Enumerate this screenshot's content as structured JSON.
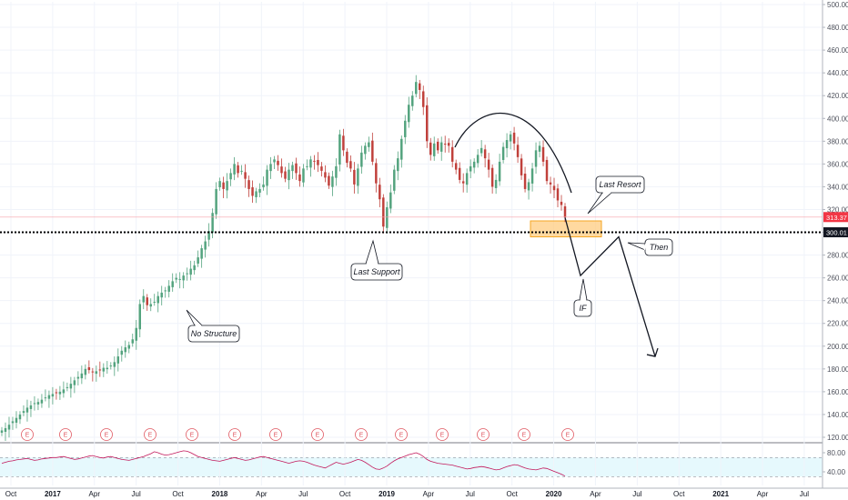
{
  "chart_data": [
    {
      "type": "candlestick",
      "title": "",
      "ylim": [
        112,
        502
      ],
      "y_ticks": [
        "500.00",
        "480.00",
        "460.00",
        "440.00",
        "420.00",
        "400.00",
        "380.00",
        "360.00",
        "340.00",
        "320.00",
        "300.00",
        "280.00",
        "260.00",
        "240.00",
        "220.00",
        "200.00",
        "180.00",
        "160.00",
        "140.00",
        "120.00"
      ],
      "x_ticks": [
        {
          "label": "Oct",
          "year": false,
          "t": 0
        },
        {
          "label": "2017",
          "year": true,
          "t": 13
        },
        {
          "label": "Apr",
          "year": false,
          "t": 26
        },
        {
          "label": "Jul",
          "year": false,
          "t": 39
        },
        {
          "label": "Oct",
          "year": false,
          "t": 52
        },
        {
          "label": "2018",
          "year": true,
          "t": 65
        },
        {
          "label": "Apr",
          "year": false,
          "t": 78
        },
        {
          "label": "Jul",
          "year": false,
          "t": 91
        },
        {
          "label": "Oct",
          "year": false,
          "t": 104
        },
        {
          "label": "2019",
          "year": true,
          "t": 117
        },
        {
          "label": "Apr",
          "year": false,
          "t": 130
        },
        {
          "label": "Jul",
          "year": false,
          "t": 143
        },
        {
          "label": "Oct",
          "year": false,
          "t": 156
        },
        {
          "label": "2020",
          "year": true,
          "t": 169
        },
        {
          "label": "Apr",
          "year": false,
          "t": 182
        },
        {
          "label": "Jul",
          "year": false,
          "t": 195
        },
        {
          "label": "Oct",
          "year": false,
          "t": 208
        },
        {
          "label": "2021",
          "year": true,
          "t": 221
        },
        {
          "label": "Apr",
          "year": false,
          "t": 234
        },
        {
          "label": "Jul",
          "year": false,
          "t": 247
        }
      ],
      "close_series": [
        126,
        128,
        131,
        134,
        137,
        140,
        143,
        146,
        148,
        150,
        151,
        153,
        155,
        157,
        158,
        159,
        160,
        162,
        164,
        167,
        170,
        173,
        176,
        180,
        179,
        177,
        178,
        179,
        181,
        181,
        183,
        186,
        191,
        196,
        199,
        201,
        206,
        216,
        237,
        244,
        236,
        237,
        239,
        244,
        247,
        249,
        253,
        257,
        260,
        259,
        262,
        264,
        268,
        271,
        278,
        286,
        292,
        301,
        317,
        338,
        345,
        338,
        345,
        352,
        360,
        352,
        354,
        347,
        338,
        332,
        336,
        338,
        342,
        355,
        360,
        364,
        359,
        352,
        347,
        355,
        359,
        352,
        345,
        356,
        358,
        364,
        362,
        359,
        354,
        348,
        341,
        349,
        358,
        386,
        372,
        361,
        356,
        342,
        356,
        370,
        376,
        379,
        362,
        343,
        329,
        305,
        322,
        335,
        355,
        365,
        382,
        398,
        412,
        420,
        432,
        425,
        410,
        380,
        368,
        378,
        372,
        379,
        377,
        376,
        362,
        355,
        346,
        343,
        352,
        358,
        362,
        368,
        374,
        365,
        355,
        340,
        346,
        362,
        375,
        381,
        386,
        378,
        366,
        350,
        338,
        344,
        356,
        372,
        376,
        362,
        345,
        342,
        337,
        328,
        324,
        313
      ],
      "last_price": "313.37",
      "horizontal_levels": [
        {
          "price": 300.01,
          "label": "300.01"
        }
      ],
      "zone": {
        "from": 296,
        "to": 310
      },
      "earnings_markers": [
        "E",
        "E",
        "E",
        "E",
        "E",
        "E",
        "E",
        "E",
        "E",
        "E",
        "E",
        "E",
        "E",
        "E"
      ],
      "annotations": [
        {
          "text": "No Structure",
          "type": "callout"
        },
        {
          "text": "Last Support",
          "type": "callout"
        },
        {
          "text": "Last Resort",
          "type": "callout"
        },
        {
          "text": "Then",
          "type": "callout"
        },
        {
          "text": "IF",
          "type": "callout"
        }
      ],
      "projected_path_prices": [
        313,
        262,
        296,
        191
      ]
    },
    {
      "type": "line",
      "title": "",
      "ylim": [
        20,
        100
      ],
      "y_ticks": [
        "80.00",
        "40.00"
      ],
      "bands": [
        30,
        70
      ],
      "values": [
        58,
        60,
        62,
        63,
        65,
        66,
        67,
        68,
        66,
        64,
        65,
        67,
        68,
        69,
        70,
        70,
        71,
        72,
        70,
        68,
        66,
        67,
        69,
        71,
        73,
        74,
        72,
        70,
        69,
        71,
        72,
        70,
        68,
        66,
        65,
        64,
        66,
        68,
        70,
        72,
        75,
        78,
        82,
        80,
        77,
        75,
        76,
        78,
        80,
        82,
        84,
        83,
        80,
        76,
        72,
        70,
        68,
        66,
        64,
        63,
        62,
        64,
        66,
        68,
        70,
        68,
        66,
        64,
        65,
        67,
        69,
        71,
        72,
        70,
        68,
        66,
        64,
        62,
        60,
        58,
        60,
        62,
        63,
        62,
        60,
        57,
        54,
        52,
        50,
        48,
        52,
        56,
        60,
        58,
        56,
        58,
        60,
        63,
        66,
        64,
        60,
        55,
        50,
        46,
        45,
        48,
        52,
        58,
        63,
        67,
        70,
        73,
        76,
        78,
        80,
        77,
        72,
        66,
        62,
        60,
        58,
        57,
        56,
        55,
        54,
        52,
        50,
        48,
        46,
        47,
        49,
        50,
        51,
        50,
        48,
        46,
        44,
        45,
        48,
        51,
        53,
        55,
        54,
        51,
        48,
        46,
        45,
        44,
        46,
        48,
        47,
        44,
        41,
        38,
        35,
        31
      ]
    }
  ],
  "colors": {
    "up": "#53a37e",
    "down": "#c0403b",
    "accent_red": "#f23645",
    "zone_fill": "#ffcc80",
    "zone_stroke": "#f5a623",
    "rsi_band_fill": "#e6f9fd",
    "rsi_line": "#c2185b"
  }
}
